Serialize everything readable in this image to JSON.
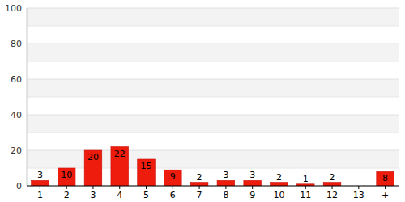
{
  "chart_data": {
    "type": "bar",
    "categories": [
      "1",
      "2",
      "3",
      "4",
      "5",
      "6",
      "7",
      "8",
      "9",
      "10",
      "11",
      "12",
      "13",
      "+"
    ],
    "values": [
      3,
      10,
      20,
      22,
      15,
      9,
      2,
      3,
      3,
      2,
      1,
      2,
      null,
      8
    ],
    "color": "#ee1c0c",
    "ylim": [
      0,
      100
    ],
    "yticks": [
      0,
      20,
      40,
      60,
      80,
      100
    ],
    "grid": true,
    "data_labels": true
  }
}
